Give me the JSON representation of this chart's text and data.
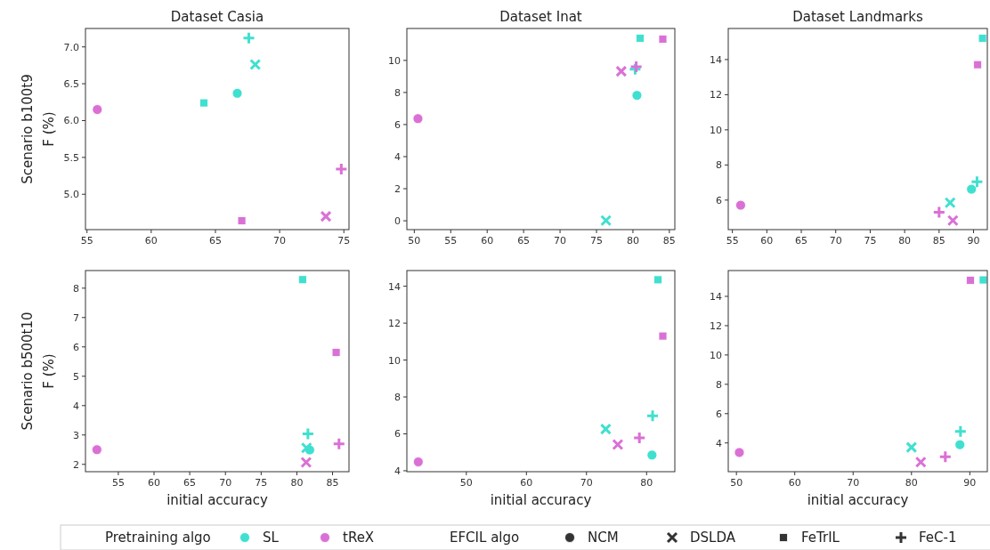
{
  "chart_data": [
    {
      "type": "scatter",
      "title": "Dataset Casia",
      "ylabel": "F (%)",
      "annotations": [
        "Scenario b100t9"
      ],
      "xlim": [
        54.88,
        75.4
      ],
      "xticks": [
        55,
        60,
        65,
        70,
        75
      ],
      "ylim": [
        4.52,
        7.25
      ],
      "yticks": [
        {
          "value": 5,
          "label": "5.0"
        },
        {
          "value": 5.5,
          "label": "5.5"
        },
        {
          "value": 6,
          "label": "6.0"
        },
        {
          "value": 6.5,
          "label": "6.5"
        },
        {
          "value": 7,
          "label": "7.0"
        }
      ],
      "series": [
        {
          "color": "#40e0d0",
          "marker": "circle",
          "x": [
            66.7
          ],
          "values": [
            6.37
          ]
        },
        {
          "color": "#40e0d0",
          "marker": "cross",
          "x": [
            68.1
          ],
          "values": [
            6.76
          ]
        },
        {
          "color": "#40e0d0",
          "marker": "square",
          "x": [
            64.1
          ],
          "values": [
            6.24
          ]
        },
        {
          "color": "#40e0d0",
          "marker": "plus",
          "x": [
            67.6
          ],
          "values": [
            7.12
          ]
        },
        {
          "color": "#da70d6",
          "marker": "circle",
          "x": [
            55.8
          ],
          "values": [
            6.15
          ]
        },
        {
          "color": "#da70d6",
          "marker": "cross",
          "x": [
            73.6
          ],
          "values": [
            4.7
          ]
        },
        {
          "color": "#da70d6",
          "marker": "square",
          "x": [
            67.05
          ],
          "values": [
            4.64
          ]
        },
        {
          "color": "#da70d6",
          "marker": "plus",
          "x": [
            74.8
          ],
          "values": [
            5.34
          ]
        }
      ]
    },
    {
      "type": "scatter",
      "title": "Dataset Inat",
      "xlim": [
        48.98,
        85.75
      ],
      "xticks": [
        50,
        55,
        60,
        65,
        70,
        75,
        80,
        85
      ],
      "ylim": [
        -0.55,
        11.99
      ],
      "yticks": [
        0,
        2,
        4,
        6,
        8,
        10
      ],
      "series": [
        {
          "color": "#40e0d0",
          "marker": "circle",
          "x": [
            80.55
          ],
          "values": [
            7.82
          ]
        },
        {
          "color": "#40e0d0",
          "marker": "cross",
          "x": [
            76.3
          ],
          "values": [
            0.02
          ]
        },
        {
          "color": "#40e0d0",
          "marker": "square",
          "x": [
            81.0
          ],
          "values": [
            11.38
          ]
        },
        {
          "color": "#40e0d0",
          "marker": "plus",
          "x": [
            80.3
          ],
          "values": [
            9.45
          ]
        },
        {
          "color": "#da70d6",
          "marker": "circle",
          "x": [
            50.5
          ],
          "values": [
            6.37
          ]
        },
        {
          "color": "#da70d6",
          "marker": "cross",
          "x": [
            78.4
          ],
          "values": [
            9.32
          ]
        },
        {
          "color": "#da70d6",
          "marker": "square",
          "x": [
            84.1
          ],
          "values": [
            11.33
          ]
        },
        {
          "color": "#da70d6",
          "marker": "plus",
          "x": [
            80.45
          ],
          "values": [
            9.6
          ]
        }
      ]
    },
    {
      "type": "scatter",
      "title": "Dataset Landmarks",
      "xlim": [
        54.4,
        92.0
      ],
      "xticks": [
        55,
        60,
        65,
        70,
        75,
        80,
        85,
        90
      ],
      "ylim": [
        4.32,
        15.77
      ],
      "yticks": [
        6,
        8,
        10,
        12,
        14
      ],
      "series": [
        {
          "color": "#40e0d0",
          "marker": "circle",
          "x": [
            89.7
          ],
          "values": [
            6.62
          ]
        },
        {
          "color": "#40e0d0",
          "marker": "cross",
          "x": [
            86.6
          ],
          "values": [
            5.85
          ]
        },
        {
          "color": "#40e0d0",
          "marker": "square",
          "x": [
            91.3
          ],
          "values": [
            15.21
          ]
        },
        {
          "color": "#40e0d0",
          "marker": "plus",
          "x": [
            90.5
          ],
          "values": [
            7.04
          ]
        },
        {
          "color": "#da70d6",
          "marker": "circle",
          "x": [
            56.2
          ],
          "values": [
            5.71
          ]
        },
        {
          "color": "#da70d6",
          "marker": "cross",
          "x": [
            87.0
          ],
          "values": [
            4.84
          ]
        },
        {
          "color": "#da70d6",
          "marker": "square",
          "x": [
            90.6
          ],
          "values": [
            13.71
          ]
        },
        {
          "color": "#da70d6",
          "marker": "plus",
          "x": [
            85.0
          ],
          "values": [
            5.31
          ]
        }
      ]
    },
    {
      "type": "scatter",
      "xlabel": "initial accuracy",
      "ylabel": "F (%)",
      "annotations": [
        "Scenario b500t10"
      ],
      "xlim": [
        50.4,
        87.3
      ],
      "xticks": [
        55,
        60,
        65,
        70,
        75,
        80,
        85
      ],
      "ylim": [
        1.75,
        8.6
      ],
      "yticks": [
        2,
        3,
        4,
        5,
        6,
        7,
        8
      ],
      "series": [
        {
          "color": "#40e0d0",
          "marker": "circle",
          "x": [
            81.8
          ],
          "values": [
            2.49
          ]
        },
        {
          "color": "#40e0d0",
          "marker": "cross",
          "x": [
            81.35
          ],
          "values": [
            2.56
          ]
        },
        {
          "color": "#40e0d0",
          "marker": "square",
          "x": [
            80.8
          ],
          "values": [
            8.29
          ]
        },
        {
          "color": "#40e0d0",
          "marker": "plus",
          "x": [
            81.55
          ],
          "values": [
            3.04
          ]
        },
        {
          "color": "#da70d6",
          "marker": "circle",
          "x": [
            52.0
          ],
          "values": [
            2.5
          ]
        },
        {
          "color": "#da70d6",
          "marker": "cross",
          "x": [
            81.3
          ],
          "values": [
            2.07
          ]
        },
        {
          "color": "#da70d6",
          "marker": "square",
          "x": [
            85.5
          ],
          "values": [
            5.81
          ]
        },
        {
          "color": "#da70d6",
          "marker": "plus",
          "x": [
            85.9
          ],
          "values": [
            2.7
          ]
        }
      ]
    },
    {
      "type": "scatter",
      "xlabel": "initial accuracy",
      "xlim": [
        40.1,
        84.7
      ],
      "xticks": [
        50,
        60,
        70,
        80
      ],
      "ylim": [
        3.95,
        14.85
      ],
      "yticks": [
        4,
        6,
        8,
        10,
        12,
        14
      ],
      "series": [
        {
          "color": "#40e0d0",
          "marker": "circle",
          "x": [
            80.9
          ],
          "values": [
            4.85
          ]
        },
        {
          "color": "#40e0d0",
          "marker": "cross",
          "x": [
            73.2
          ],
          "values": [
            6.26
          ]
        },
        {
          "color": "#40e0d0",
          "marker": "square",
          "x": [
            81.9
          ],
          "values": [
            14.35
          ]
        },
        {
          "color": "#40e0d0",
          "marker": "plus",
          "x": [
            81.0
          ],
          "values": [
            6.98
          ]
        },
        {
          "color": "#da70d6",
          "marker": "circle",
          "x": [
            42.0
          ],
          "values": [
            4.48
          ]
        },
        {
          "color": "#da70d6",
          "marker": "cross",
          "x": [
            75.2
          ],
          "values": [
            5.42
          ]
        },
        {
          "color": "#da70d6",
          "marker": "square",
          "x": [
            82.7
          ],
          "values": [
            11.3
          ]
        },
        {
          "color": "#da70d6",
          "marker": "plus",
          "x": [
            78.8
          ],
          "values": [
            5.78
          ]
        }
      ]
    },
    {
      "type": "scatter",
      "xlabel": "initial accuracy",
      "xlim": [
        48.6,
        93.0
      ],
      "xticks": [
        50,
        60,
        70,
        80,
        90
      ],
      "ylim": [
        2.04,
        15.76
      ],
      "yticks": [
        4,
        6,
        8,
        10,
        12,
        14
      ],
      "series": [
        {
          "color": "#40e0d0",
          "marker": "circle",
          "x": [
            88.3
          ],
          "values": [
            3.88
          ]
        },
        {
          "color": "#40e0d0",
          "marker": "cross",
          "x": [
            80.0
          ],
          "values": [
            3.7
          ]
        },
        {
          "color": "#40e0d0",
          "marker": "square",
          "x": [
            92.3
          ],
          "values": [
            15.12
          ]
        },
        {
          "color": "#40e0d0",
          "marker": "plus",
          "x": [
            88.4
          ],
          "values": [
            4.79
          ]
        },
        {
          "color": "#da70d6",
          "marker": "circle",
          "x": [
            50.5
          ],
          "values": [
            3.35
          ]
        },
        {
          "color": "#da70d6",
          "marker": "cross",
          "x": [
            81.6
          ],
          "values": [
            2.69
          ]
        },
        {
          "color": "#da70d6",
          "marker": "square",
          "x": [
            90.1
          ],
          "values": [
            15.1
          ]
        },
        {
          "color": "#da70d6",
          "marker": "plus",
          "x": [
            85.8
          ],
          "values": [
            3.05
          ]
        }
      ]
    },
    {
      "type": "other",
      "annotations": [
        "Pretraining algo",
        "SL",
        "tReX",
        "EFCIL algo",
        "NCM",
        "DSLDA",
        "FeTrIL",
        "FeC-1"
      ],
      "colors": [
        null,
        "#40e0d0",
        "#da70d6",
        null,
        "#333333",
        "#333333",
        "#333333",
        "#333333"
      ]
    }
  ]
}
